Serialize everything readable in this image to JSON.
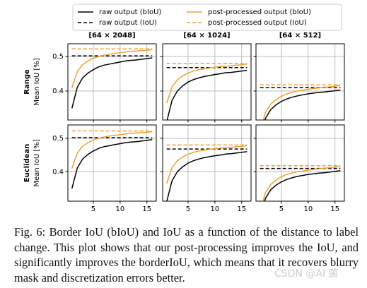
{
  "legend": [
    {
      "name": "raw output (bIoU)",
      "color": "#000000",
      "dashed": false
    },
    {
      "name": "raw output (IoU)",
      "color": "#000000",
      "dashed": true
    },
    {
      "name": "post-processed output (bIoU)",
      "color": "#f0a030",
      "dashed": false
    },
    {
      "name": "post-processed output (IoU)",
      "color": "#f0a030",
      "dashed": true
    }
  ],
  "chart_data": [
    {
      "type": "line",
      "title": "[64 × 2048]",
      "row_label": "Range",
      "ylabel": "Mean IoU [%]",
      "x": [
        1,
        2,
        3,
        4,
        5,
        6,
        7,
        8,
        9,
        10,
        11,
        12,
        13,
        14,
        15,
        16
      ],
      "xlim": [
        0.25,
        16.75
      ],
      "ylim": [
        0.316,
        0.537
      ],
      "xticks": [
        5,
        10,
        15
      ],
      "yticks": [
        0.4,
        0.5
      ],
      "xtick_labels": false,
      "ytick_labels": true,
      "grid": true,
      "series": [
        {
          "values": [
            0.35,
            0.411,
            0.438,
            0.452,
            0.462,
            0.47,
            0.475,
            0.478,
            0.481,
            0.484,
            0.487,
            0.489,
            0.49,
            0.492,
            0.494,
            0.496
          ]
        },
        {
          "values": [
            0.502,
            0.502,
            0.502,
            0.502,
            0.502,
            0.502,
            0.502,
            0.502,
            0.502,
            0.502,
            0.502,
            0.502,
            0.502,
            0.502,
            0.502,
            0.502
          ]
        },
        {
          "values": [
            0.41,
            0.456,
            0.476,
            0.487,
            0.495,
            0.5,
            0.504,
            0.507,
            0.509,
            0.511,
            0.513,
            0.515,
            0.516,
            0.517,
            0.518,
            0.52
          ]
        },
        {
          "values": [
            0.522,
            0.522,
            0.522,
            0.522,
            0.522,
            0.522,
            0.522,
            0.522,
            0.522,
            0.522,
            0.522,
            0.522,
            0.522,
            0.522,
            0.522,
            0.522
          ]
        }
      ]
    },
    {
      "type": "line",
      "title": "[64 × 1024]",
      "x": [
        1,
        2,
        3,
        4,
        5,
        6,
        7,
        8,
        9,
        10,
        11,
        12,
        13,
        14,
        15,
        16
      ],
      "xlim": [
        0.25,
        16.75
      ],
      "ylim": [
        0.316,
        0.537
      ],
      "xticks": [
        5,
        10,
        15
      ],
      "yticks": [
        0.4,
        0.5
      ],
      "xtick_labels": false,
      "ytick_labels": false,
      "grid": true,
      "series": [
        {
          "values": [
            0.31,
            0.373,
            0.4,
            0.415,
            0.426,
            0.433,
            0.438,
            0.442,
            0.445,
            0.448,
            0.45,
            0.453,
            0.454,
            0.456,
            0.458,
            0.46
          ]
        },
        {
          "values": [
            0.468,
            0.468,
            0.468,
            0.468,
            0.468,
            0.468,
            0.468,
            0.468,
            0.468,
            0.468,
            0.468,
            0.468,
            0.468,
            0.468,
            0.468,
            0.468
          ]
        },
        {
          "values": [
            0.365,
            0.412,
            0.433,
            0.444,
            0.452,
            0.458,
            0.462,
            0.464,
            0.467,
            0.469,
            0.471,
            0.472,
            0.473,
            0.475,
            0.476,
            0.478
          ]
        },
        {
          "values": [
            0.48,
            0.48,
            0.48,
            0.48,
            0.48,
            0.48,
            0.48,
            0.48,
            0.48,
            0.48,
            0.48,
            0.48,
            0.48,
            0.48,
            0.48,
            0.48
          ]
        }
      ]
    },
    {
      "type": "line",
      "title": "[64 × 512]",
      "x": [
        1,
        2,
        3,
        4,
        5,
        6,
        7,
        8,
        9,
        10,
        11,
        12,
        13,
        14,
        15,
        16
      ],
      "xlim": [
        0.25,
        16.75
      ],
      "ylim": [
        0.316,
        0.537
      ],
      "xticks": [
        5,
        10,
        15
      ],
      "yticks": [
        0.4,
        0.5
      ],
      "xtick_labels": false,
      "ytick_labels": false,
      "grid": true,
      "series": [
        {
          "values": [
            0.26,
            0.32,
            0.346,
            0.36,
            0.37,
            0.377,
            0.382,
            0.386,
            0.389,
            0.392,
            0.394,
            0.396,
            0.397,
            0.399,
            0.401,
            0.403
          ]
        },
        {
          "values": [
            0.41,
            0.41,
            0.41,
            0.41,
            0.41,
            0.41,
            0.41,
            0.41,
            0.41,
            0.41,
            0.41,
            0.41,
            0.41,
            0.41,
            0.41,
            0.41
          ]
        },
        {
          "values": [
            0.28,
            0.337,
            0.362,
            0.375,
            0.385,
            0.392,
            0.396,
            0.4,
            0.402,
            0.405,
            0.407,
            0.409,
            0.411,
            0.412,
            0.414,
            0.416
          ]
        },
        {
          "values": [
            0.418,
            0.418,
            0.418,
            0.418,
            0.418,
            0.418,
            0.418,
            0.418,
            0.418,
            0.418,
            0.418,
            0.418,
            0.418,
            0.418,
            0.418,
            0.418
          ]
        }
      ]
    },
    {
      "type": "line",
      "row_label": "Euclidean",
      "ylabel": "Mean IoU [%]",
      "x": [
        1,
        2,
        3,
        4,
        5,
        6,
        7,
        8,
        9,
        10,
        11,
        12,
        13,
        14,
        15,
        16
      ],
      "xlim": [
        0.25,
        16.75
      ],
      "ylim": [
        0.312,
        0.54
      ],
      "xticks": [
        5,
        10,
        15
      ],
      "yticks": [
        0.4,
        0.5
      ],
      "xtick_labels": true,
      "ytick_labels": true,
      "grid": true,
      "series": [
        {
          "values": [
            0.35,
            0.411,
            0.438,
            0.452,
            0.462,
            0.47,
            0.475,
            0.478,
            0.481,
            0.484,
            0.487,
            0.489,
            0.49,
            0.492,
            0.494,
            0.496
          ]
        },
        {
          "values": [
            0.502,
            0.502,
            0.502,
            0.502,
            0.502,
            0.502,
            0.502,
            0.502,
            0.502,
            0.502,
            0.502,
            0.502,
            0.502,
            0.502,
            0.502,
            0.502
          ]
        },
        {
          "values": [
            0.41,
            0.456,
            0.476,
            0.487,
            0.495,
            0.5,
            0.504,
            0.507,
            0.509,
            0.511,
            0.513,
            0.515,
            0.516,
            0.517,
            0.518,
            0.52
          ]
        },
        {
          "values": [
            0.522,
            0.522,
            0.522,
            0.522,
            0.522,
            0.522,
            0.522,
            0.522,
            0.522,
            0.522,
            0.522,
            0.522,
            0.522,
            0.522,
            0.522,
            0.522
          ]
        }
      ]
    },
    {
      "type": "line",
      "x": [
        1,
        2,
        3,
        4,
        5,
        6,
        7,
        8,
        9,
        10,
        11,
        12,
        13,
        14,
        15,
        16
      ],
      "xlim": [
        0.25,
        16.75
      ],
      "ylim": [
        0.312,
        0.54
      ],
      "xticks": [
        5,
        10,
        15
      ],
      "yticks": [
        0.4,
        0.5
      ],
      "xtick_labels": true,
      "ytick_labels": false,
      "grid": true,
      "series": [
        {
          "values": [
            0.31,
            0.373,
            0.4,
            0.415,
            0.426,
            0.433,
            0.438,
            0.442,
            0.445,
            0.448,
            0.45,
            0.453,
            0.454,
            0.456,
            0.458,
            0.46
          ]
        },
        {
          "values": [
            0.468,
            0.468,
            0.468,
            0.468,
            0.468,
            0.468,
            0.468,
            0.468,
            0.468,
            0.468,
            0.468,
            0.468,
            0.468,
            0.468,
            0.468,
            0.468
          ]
        },
        {
          "values": [
            0.365,
            0.412,
            0.433,
            0.444,
            0.452,
            0.458,
            0.462,
            0.464,
            0.467,
            0.469,
            0.471,
            0.472,
            0.473,
            0.475,
            0.476,
            0.478
          ]
        },
        {
          "values": [
            0.48,
            0.48,
            0.48,
            0.48,
            0.48,
            0.48,
            0.48,
            0.48,
            0.48,
            0.48,
            0.48,
            0.48,
            0.48,
            0.48,
            0.48,
            0.48
          ]
        }
      ]
    },
    {
      "type": "line",
      "x": [
        1,
        2,
        3,
        4,
        5,
        6,
        7,
        8,
        9,
        10,
        11,
        12,
        13,
        14,
        15,
        16
      ],
      "xlim": [
        0.25,
        16.75
      ],
      "ylim": [
        0.312,
        0.54
      ],
      "xticks": [
        5,
        10,
        15
      ],
      "yticks": [
        0.4,
        0.5
      ],
      "xtick_labels": true,
      "ytick_labels": false,
      "grid": true,
      "series": [
        {
          "values": [
            0.26,
            0.32,
            0.346,
            0.36,
            0.37,
            0.377,
            0.382,
            0.386,
            0.389,
            0.392,
            0.394,
            0.396,
            0.397,
            0.399,
            0.401,
            0.403
          ]
        },
        {
          "values": [
            0.41,
            0.41,
            0.41,
            0.41,
            0.41,
            0.41,
            0.41,
            0.41,
            0.41,
            0.41,
            0.41,
            0.41,
            0.41,
            0.41,
            0.41,
            0.41
          ]
        },
        {
          "values": [
            0.28,
            0.337,
            0.362,
            0.375,
            0.385,
            0.392,
            0.396,
            0.4,
            0.402,
            0.405,
            0.407,
            0.409,
            0.411,
            0.412,
            0.414,
            0.416
          ]
        },
        {
          "values": [
            0.418,
            0.418,
            0.418,
            0.418,
            0.418,
            0.418,
            0.418,
            0.418,
            0.418,
            0.418,
            0.418,
            0.418,
            0.418,
            0.418,
            0.418,
            0.418
          ]
        }
      ]
    }
  ],
  "caption": "Fig. 6: Border IoU (bIoU) and IoU as a function of the distance to label change. This plot shows that our post-processing improves the IoU, and significantly improves the borderIoU, which means that it recovers blurry mask and discretization errors better.",
  "watermark": "CSDN @AI 菌"
}
